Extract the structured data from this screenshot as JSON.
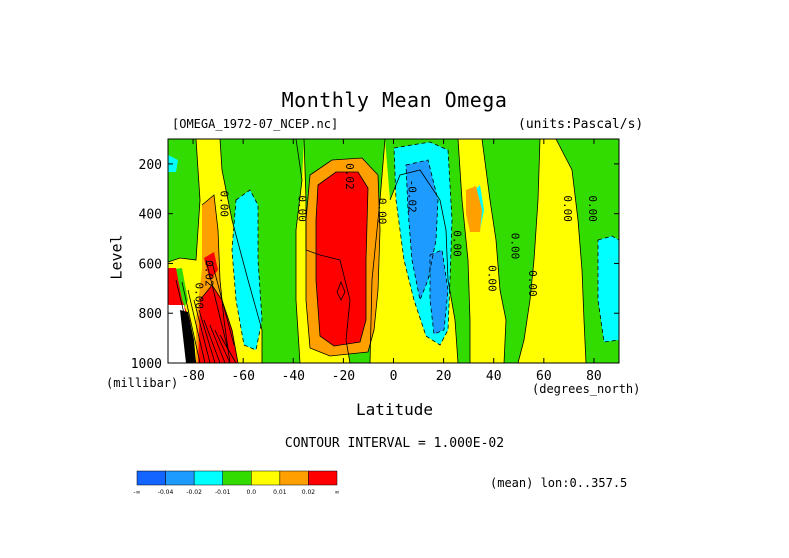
{
  "chart_data": {
    "type": "heatmap",
    "title": "Monthly Mean Omega",
    "file_label": "[OMEGA_1972-07_NCEP.nc]",
    "units_label": "(units:Pascal/s)",
    "xlabel": "Latitude",
    "x_unit_label": "(degrees_north)",
    "ylabel": "Level",
    "y_unit_label": "(millibar)",
    "xlim": [
      -90,
      90
    ],
    "ylim": [
      1000,
      100
    ],
    "x_ticks": [
      -80,
      -60,
      -40,
      -20,
      0,
      20,
      40,
      60,
      80
    ],
    "x_tick_labels": [
      "-80",
      "-60",
      "-40",
      "-20",
      "0",
      "20",
      "40",
      "60",
      "80"
    ],
    "y_ticks": [
      200,
      400,
      600,
      800,
      1000
    ],
    "y_tick_labels": [
      "200",
      "400",
      "600",
      "800",
      "1000"
    ],
    "contour_interval_text": "CONTOUR INTERVAL = 1.000E-02",
    "contour_labels": [
      {
        "text": "0.00",
        "lat": -79,
        "lev": 730
      },
      {
        "text": "0.02",
        "lat": -75,
        "lev": 640
      },
      {
        "text": "0.00",
        "lat": -69,
        "lev": 360
      },
      {
        "text": "0.00",
        "lat": -38,
        "lev": 380
      },
      {
        "text": "0.02",
        "lat": -19,
        "lev": 250
      },
      {
        "text": "0.00",
        "lat": -6,
        "lev": 390
      },
      {
        "text": "-0.02",
        "lat": 6,
        "lev": 330
      },
      {
        "text": "0.00",
        "lat": 24,
        "lev": 520
      },
      {
        "text": "0.00",
        "lat": 38,
        "lev": 660
      },
      {
        "text": "0.00",
        "lat": 47,
        "lev": 530
      },
      {
        "text": "0.00",
        "lat": 54,
        "lev": 680
      },
      {
        "text": "0.00",
        "lat": 68,
        "lev": 380
      },
      {
        "text": "0.00",
        "lat": 78,
        "lev": 380
      }
    ],
    "colorbar": {
      "colors": [
        "#1464ff",
        "#1e9bff",
        "#00ffff",
        "#32dc00",
        "#ffff00",
        "#ffa000",
        "#ff0000"
      ],
      "labels": [
        "-∞",
        "-0.04",
        "-0.02",
        "-0.01",
        "0.0",
        "0.01",
        "0.02",
        "∞"
      ]
    },
    "mean_note": "(mean) lon:0..357.5"
  }
}
